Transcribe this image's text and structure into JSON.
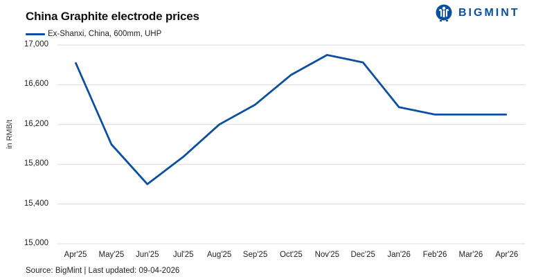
{
  "header": {
    "title": "China Graphite electrode prices",
    "logo_text": "BIGMINT"
  },
  "legend": {
    "series_label": "Ex-Shanxi, China, 600mm, UHP",
    "color": "#0a4fa0"
  },
  "axis": {
    "ylabel": "in RMB/t",
    "yticks": [
      "17,000",
      "16,600",
      "16,200",
      "15,800",
      "15,400",
      "15,000"
    ],
    "xticks": [
      "Apr'25",
      "May'25",
      "Jun'25",
      "Jul'25",
      "Aug'25",
      "Sep'25",
      "Oct'25",
      "Nov'25",
      "Dec'25",
      "Jan'26",
      "Feb'26",
      "Mar'26",
      "Apr'26"
    ]
  },
  "footer": {
    "source": "Source: BigMint | Last updated: 09-04-2026"
  },
  "chart_data": {
    "type": "line",
    "title": "China Graphite electrode prices",
    "xlabel": "",
    "ylabel": "in RMB/t",
    "categories": [
      "Apr'25",
      "May'25",
      "Jun'25",
      "Jul'25",
      "Aug'25",
      "Sep'25",
      "Oct'25",
      "Nov'25",
      "Dec'25",
      "Jan'26",
      "Feb'26",
      "Mar'26",
      "Apr'26"
    ],
    "series": [
      {
        "name": "Ex-Shanxi, China, 600mm, UHP",
        "color": "#0a4fa0",
        "values": [
          16825,
          16000,
          15600,
          15875,
          16200,
          16400,
          16700,
          16900,
          16825,
          16375,
          16300,
          16300,
          16300
        ]
      }
    ],
    "ylim": [
      15000,
      17000
    ],
    "yticks": [
      15000,
      15400,
      15800,
      16200,
      16600,
      17000
    ],
    "grid": "horizontal",
    "legend_position": "top-left"
  }
}
